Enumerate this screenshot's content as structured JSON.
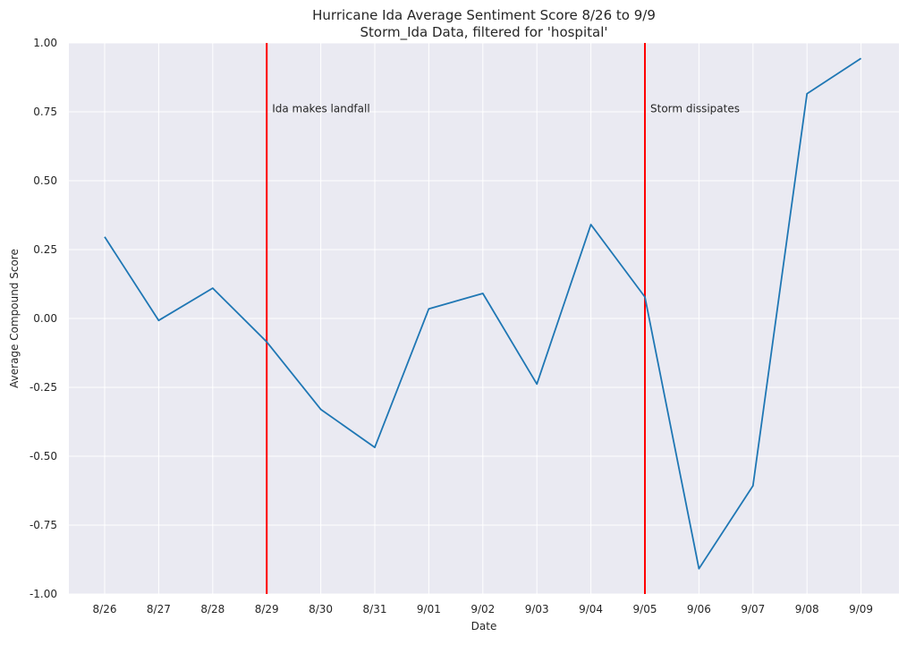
{
  "chart_data": {
    "type": "line",
    "title": "Hurricane Ida Average Sentiment Score 8/26 to 9/9",
    "subtitle": "Storm_Ida Data, filtered for 'hospital'",
    "xlabel": "Date",
    "ylabel": "Average Compound Score",
    "categories": [
      "8/26",
      "8/27",
      "8/28",
      "8/29",
      "8/30",
      "8/31",
      "9/01",
      "9/02",
      "9/03",
      "9/04",
      "9/05",
      "9/06",
      "9/07",
      "9/08",
      "9/09"
    ],
    "series": [
      {
        "values": [
          0.296,
          -0.007,
          0.11,
          -0.085,
          -0.33,
          -0.468,
          0.035,
          0.091,
          -0.238,
          0.341,
          0.078,
          -0.908,
          -0.607,
          0.816,
          0.944
        ],
        "color": "#1f77b4"
      }
    ],
    "ylim": [
      -1.0,
      1.0
    ],
    "yticks": [
      "-1.00",
      "-0.75",
      "-0.50",
      "-0.25",
      "0.00",
      "0.25",
      "0.50",
      "0.75",
      "1.00"
    ],
    "ytick_values": [
      -1.0,
      -0.75,
      -0.5,
      -0.25,
      0.0,
      0.25,
      0.5,
      0.75,
      1.0
    ],
    "grid": true,
    "background_color": "#eaeaf2",
    "annotations": [
      {
        "x": "8/29",
        "text": "Ida makes landfall",
        "y": 0.75,
        "line_color": "#ff0000"
      },
      {
        "x": "9/05",
        "text": "Storm dissipates",
        "y": 0.75,
        "line_color": "#ff0000"
      }
    ]
  }
}
